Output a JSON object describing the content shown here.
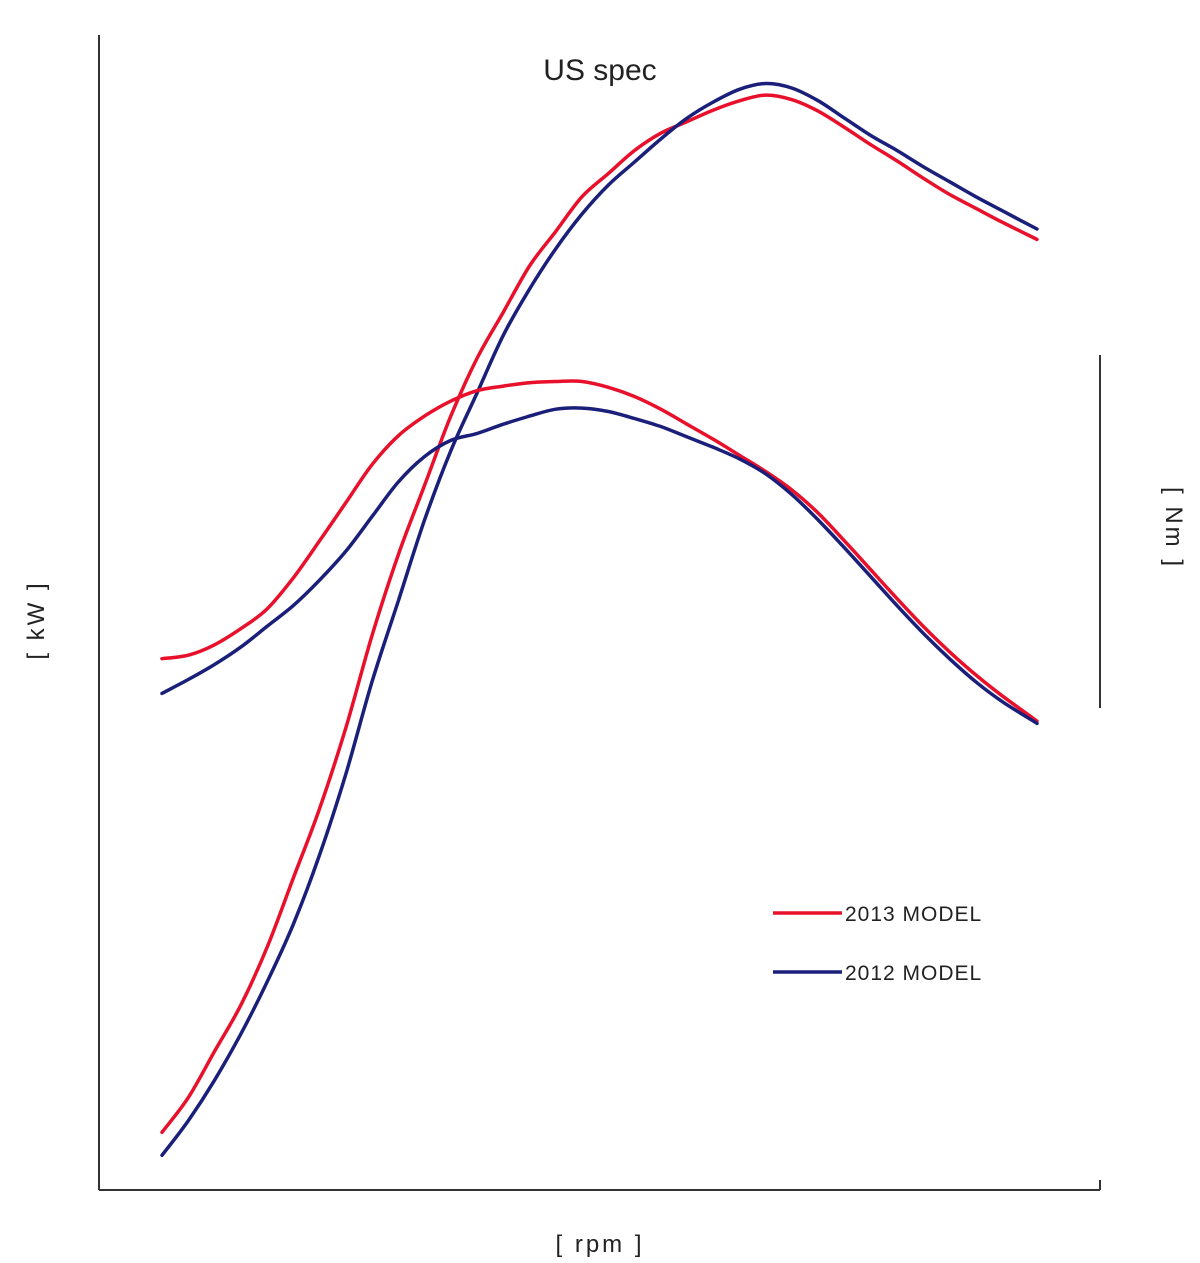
{
  "chart_data": {
    "type": "line",
    "title": "US spec",
    "xlabel": "[ rpm ]",
    "ylabel_left": "[ kW ]",
    "ylabel_right": "[ Nm ]",
    "x_ticks": [],
    "y_ticks": [],
    "grid": false,
    "legend_position": "bottom-right",
    "xlim": [
      0,
      100
    ],
    "ylim": [
      0,
      100
    ],
    "series": [
      {
        "name": "2013 MODEL",
        "quantity": "power",
        "color": "#e8102a",
        "x": [
          0,
          3,
          6,
          9,
          12,
          15,
          18,
          21,
          24,
          27,
          30,
          33,
          36,
          39,
          42,
          45,
          48,
          51,
          54,
          57,
          60,
          63,
          66,
          69,
          72,
          75,
          78,
          81,
          84,
          87,
          90,
          93,
          96,
          100
        ],
        "y": [
          5,
          8,
          12,
          16,
          21,
          27,
          33,
          40,
          48,
          55,
          61,
          67,
          72,
          76,
          80,
          83,
          86,
          88,
          90,
          91.5,
          92.5,
          93.5,
          94.3,
          94.8,
          94.4,
          93.4,
          92.0,
          90.5,
          89.1,
          87.6,
          86.2,
          85.0,
          83.8,
          82.3
        ]
      },
      {
        "name": "2012 MODEL",
        "quantity": "power",
        "color": "#1a1f7a",
        "x": [
          0,
          3,
          6,
          9,
          12,
          15,
          18,
          21,
          24,
          27,
          30,
          33,
          36,
          39,
          42,
          45,
          48,
          51,
          54,
          57,
          60,
          63,
          66,
          69,
          72,
          75,
          78,
          81,
          84,
          87,
          90,
          93,
          96,
          100
        ],
        "y": [
          3,
          6,
          9.5,
          13.5,
          18,
          23,
          29,
          36,
          44,
          51,
          58,
          64,
          69,
          74,
          78,
          81.5,
          84.5,
          87,
          89,
          91,
          92.8,
          94.2,
          95.3,
          95.8,
          95.4,
          94.3,
          92.8,
          91.3,
          90.0,
          88.6,
          87.3,
          86.0,
          84.8,
          83.2
        ]
      },
      {
        "name": "2013 MODEL",
        "quantity": "torque",
        "color": "#e8102a",
        "x": [
          0,
          3,
          6,
          9,
          12,
          15,
          18,
          21,
          24,
          27,
          30,
          33,
          36,
          39,
          42,
          45,
          48,
          51,
          54,
          57,
          60,
          63,
          66,
          69,
          72,
          75,
          78,
          81,
          84,
          87,
          90,
          93,
          96,
          100
        ],
        "y": [
          46,
          46.3,
          47.2,
          48.6,
          50.3,
          53.0,
          56.2,
          59.5,
          62.8,
          65.3,
          67.0,
          68.3,
          69.2,
          69.6,
          69.9,
          70.0,
          70.0,
          69.5,
          68.7,
          67.6,
          66.3,
          65.0,
          63.6,
          62.2,
          60.6,
          58.6,
          56.2,
          53.7,
          51.2,
          48.8,
          46.6,
          44.6,
          42.8,
          40.6
        ]
      },
      {
        "name": "2012 MODEL",
        "quantity": "torque",
        "color": "#1a1f7a",
        "x": [
          0,
          3,
          6,
          9,
          12,
          15,
          18,
          21,
          24,
          27,
          30,
          33,
          36,
          39,
          42,
          45,
          48,
          51,
          54,
          57,
          60,
          63,
          66,
          69,
          72,
          75,
          78,
          81,
          84,
          87,
          90,
          93,
          96,
          100
        ],
        "y": [
          43,
          44.2,
          45.5,
          47.0,
          48.8,
          50.6,
          52.8,
          55.3,
          58.3,
          61.3,
          63.5,
          64.9,
          65.5,
          66.3,
          67.0,
          67.6,
          67.7,
          67.4,
          66.8,
          66.1,
          65.2,
          64.3,
          63.3,
          62.0,
          60.2,
          58.0,
          55.6,
          53.1,
          50.6,
          48.2,
          46.0,
          44.0,
          42.3,
          40.4
        ]
      }
    ],
    "legend": [
      {
        "label": "2013 MODEL",
        "color": "#e8102a"
      },
      {
        "label": "2012 MODEL",
        "color": "#1a1f7a"
      }
    ]
  }
}
